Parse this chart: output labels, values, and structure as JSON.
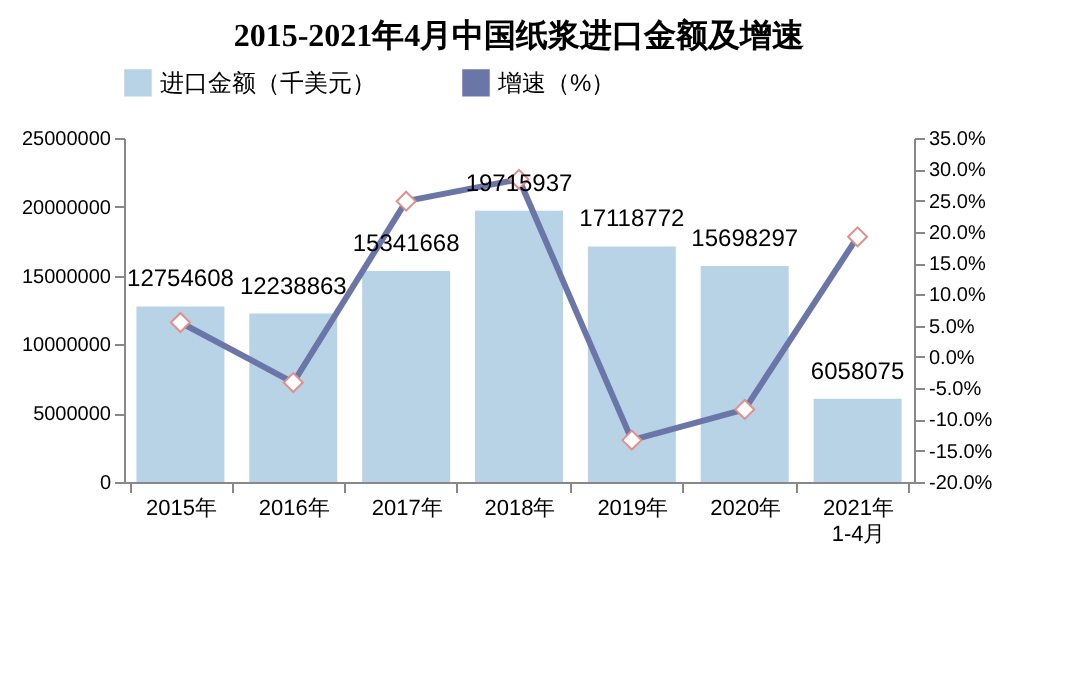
{
  "chart_data": {
    "type": "bar",
    "title": "2015-2021年4月中国纸浆进口金额及增速",
    "categories": [
      "2015年",
      "2016年",
      "2017年",
      "2018年",
      "2019年",
      "2020年",
      "2021年1-4月"
    ],
    "series": [
      {
        "name": "进口金额（千美元）",
        "color": "#b8d3e6",
        "values": [
          12754608,
          12238863,
          15341668,
          19715937,
          17118772,
          15698297,
          6058075
        ],
        "value_labels": [
          "12754608",
          "12238863",
          "15341668",
          "19715937",
          "17118772",
          "15698297",
          "6058075"
        ]
      },
      {
        "name": "增速（%）",
        "type": "line",
        "axis": "y2",
        "color": "#6b76a8",
        "values": [
          5.5,
          -4.1,
          24.9,
          28.4,
          -13.3,
          -8.4,
          19.2
        ]
      }
    ],
    "legend": "top",
    "marker": "diamond",
    "grid": false,
    "ylim": [
      0,
      25000000
    ],
    "yticks": [
      0,
      5000000,
      10000000,
      15000000,
      20000000,
      25000000
    ],
    "y2lim": [
      -20,
      35
    ],
    "y2ticks": [
      {
        "value": -20,
        "label": "-20.0%"
      },
      {
        "value": -15,
        "label": "-15.0%"
      },
      {
        "value": -10,
        "label": "-10.0%"
      },
      {
        "value": -5,
        "label": "-5.0%"
      },
      {
        "value": 0,
        "label": "0.0%"
      },
      {
        "value": 5,
        "label": "5.0%"
      },
      {
        "value": 10,
        "label": "10.0%"
      },
      {
        "value": 15,
        "label": "15.0%"
      },
      {
        "value": 20,
        "label": "20.0%"
      },
      {
        "value": 25,
        "label": "25.0%"
      },
      {
        "value": 30,
        "label": "30.0%"
      },
      {
        "value": 35,
        "label": "35.0%"
      }
    ]
  }
}
